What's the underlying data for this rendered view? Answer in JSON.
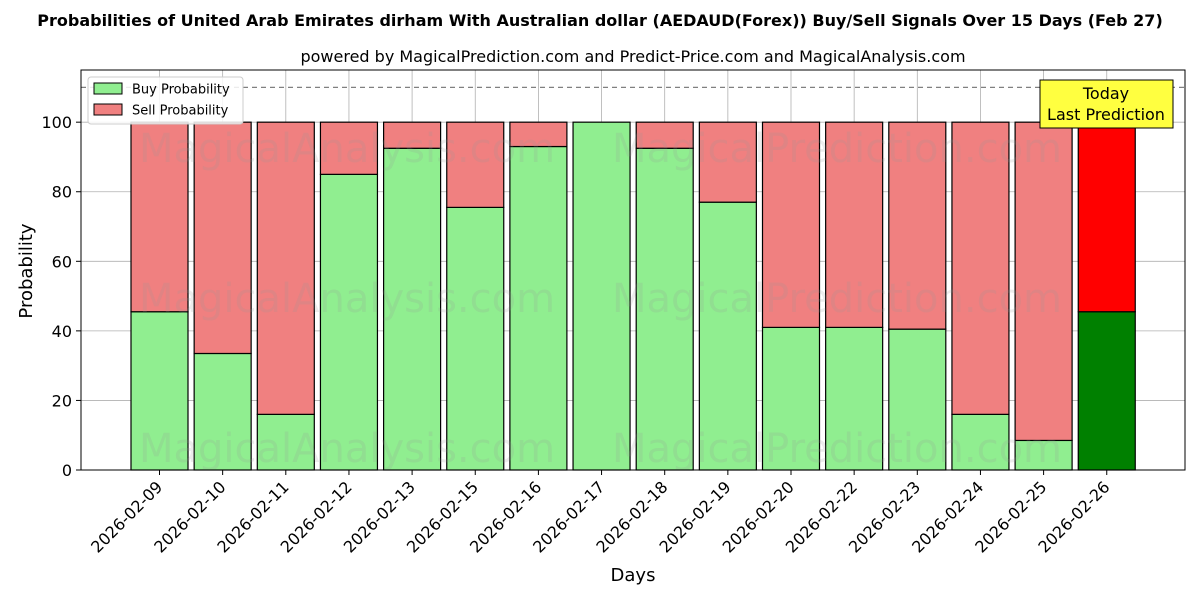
{
  "chart_data": {
    "type": "bar",
    "title": "Probabilities of United Arab Emirates dirham With Australian dollar (AEDAUD(Forex)) Buy/Sell Signals Over 15 Days (Feb 27)",
    "subtitle": "powered by MagicalPrediction.com and Predict-Price.com and MagicalAnalysis.com",
    "xlabel": "Days",
    "ylabel": "Probability",
    "ylim": [
      0,
      115
    ],
    "yticks": [
      "0",
      "20",
      "40",
      "60",
      "80",
      "100"
    ],
    "reference_line": 110,
    "grid": true,
    "stacked": true,
    "legend_position": "top-left",
    "categories": [
      "2026-02-09",
      "2026-02-10",
      "2026-02-11",
      "2026-02-12",
      "2026-02-13",
      "2026-02-15",
      "2026-02-16",
      "2026-02-17",
      "2026-02-18",
      "2026-02-19",
      "2026-02-20",
      "2026-02-22",
      "2026-02-23",
      "2026-02-24",
      "2026-02-25",
      "2026-02-26"
    ],
    "series": [
      {
        "name": "Buy Probability",
        "color": "#90ee90",
        "highlight_color": "#008000",
        "values": [
          45.5,
          33.5,
          16,
          85,
          92.5,
          75.5,
          93,
          100,
          92.5,
          77,
          41,
          41,
          40.5,
          16,
          8.5,
          45.5
        ]
      },
      {
        "name": "Sell Probability",
        "color": "#f08080",
        "highlight_color": "#ff0000",
        "values": [
          54.5,
          66.5,
          84,
          15,
          7.5,
          24.5,
          7,
          0,
          7.5,
          23,
          59,
          59,
          59.5,
          84,
          91.5,
          54.5
        ]
      }
    ],
    "annotation": {
      "line1": "Today",
      "line2": "Last Prediction",
      "color": "#ffff40"
    },
    "watermarks": [
      "MagicalAnalysis.com",
      "MagicalPrediction.com"
    ]
  }
}
